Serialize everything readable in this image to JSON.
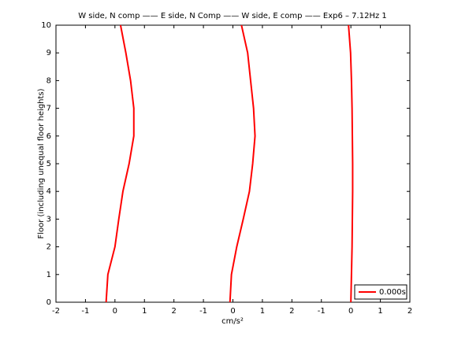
{
  "chart_data": {
    "type": "line",
    "title": "W side, N comp —— E side, N Comp —— W side, E comp —— Exp6 – 7.12Hz 1",
    "xlabel": "cm/s²",
    "ylabel": "Floor (including unequal floor heights)",
    "x_per_series": false,
    "y": [
      0,
      1,
      2,
      3,
      4,
      5,
      6,
      7,
      8,
      9,
      10
    ],
    "series": [
      {
        "name": "0.000s",
        "color": "#ff0000",
        "values": [
          -0.3,
          -0.24,
          0,
          0.13,
          0.27,
          0.48,
          0.64,
          0.64,
          0.53,
          0.37,
          0.19
        ]
      },
      {
        "color": "#ff0000",
        "values": [
          3.9,
          3.95,
          4.13,
          4.35,
          4.56,
          4.67,
          4.75,
          4.7,
          4.6,
          4.5,
          4.29
        ]
      },
      {
        "color": "#ff0000",
        "values": [
          8.0,
          8.02,
          8.04,
          8.05,
          8.06,
          8.06,
          8.05,
          8.04,
          8.02,
          7.99,
          7.92
        ]
      }
    ],
    "xlim": [
      -2,
      10
    ],
    "xticks": [
      -2,
      -1,
      0,
      1,
      2,
      {
        "value": 3,
        "label": "-1"
      },
      {
        "value": 4,
        "label": "0"
      },
      {
        "value": 5,
        "label": "1"
      },
      {
        "value": 6,
        "label": "2"
      },
      {
        "value": 7,
        "label": "-1"
      },
      {
        "value": 8,
        "label": "0"
      },
      {
        "value": 9,
        "label": "1"
      },
      {
        "value": 10,
        "label": "2"
      }
    ],
    "ylim": [
      0,
      10
    ],
    "yticks": [
      0,
      1,
      2,
      3,
      4,
      5,
      6,
      7,
      8,
      9,
      10
    ],
    "grid": false,
    "legend": "lower right"
  }
}
